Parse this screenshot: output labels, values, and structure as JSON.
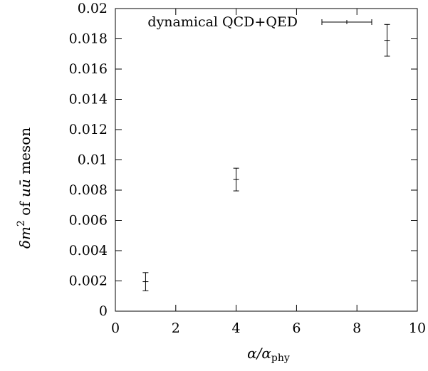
{
  "chart_data": {
    "type": "scatter",
    "title": "",
    "xlabel": "α/α",
    "xlabel_sub": "phy",
    "ylabel_parts": [
      "δm",
      "2",
      " of ",
      "uū",
      " meson"
    ],
    "xlim": [
      0,
      10
    ],
    "ylim": [
      0,
      0.02
    ],
    "x_ticks": [
      0,
      2,
      4,
      6,
      8,
      10
    ],
    "x_tick_labels": [
      "0",
      "2",
      "4",
      "6",
      "8",
      "10"
    ],
    "y_ticks": [
      0,
      0.002,
      0.004,
      0.006,
      0.008,
      0.01,
      0.012,
      0.014,
      0.016,
      0.018,
      0.02
    ],
    "y_tick_labels": [
      "0",
      "0.002",
      "0.004",
      "0.006",
      "0.008",
      "0.01",
      "0.012",
      "0.014",
      "0.016",
      "0.018",
      "0.02"
    ],
    "grid": false,
    "legend_position": "top-right",
    "series": [
      {
        "name": "dynamical QCD+QED",
        "color": "#000000",
        "points": [
          {
            "x": 1,
            "y": 0.00195,
            "yerr": 0.0006
          },
          {
            "x": 4,
            "y": 0.0087,
            "yerr": 0.00075
          },
          {
            "x": 9,
            "y": 0.0179,
            "yerr": 0.00105
          }
        ]
      }
    ]
  }
}
